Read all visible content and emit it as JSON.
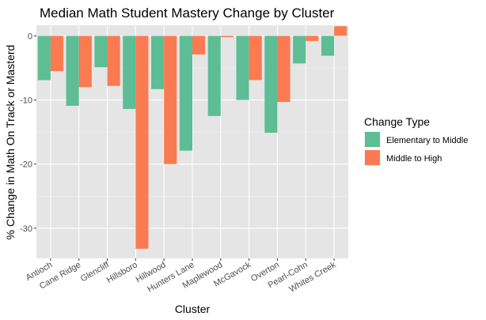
{
  "chart_data": {
    "type": "bar",
    "title": "Median Math Student Mastery Change by Cluster",
    "xlabel": "Cluster",
    "ylabel": "% Change in Math On Track or Masterd",
    "categories": [
      "Antioch",
      "Cane Ridge",
      "Glencliff",
      "Hillsboro",
      "Hillwood",
      "Hunters Lane",
      "Maplewood",
      "McGavock",
      "Overton",
      "Pearl-Cohn",
      "Whites Creek"
    ],
    "series": [
      {
        "name": "Elementary to Middle",
        "color": "#5DBD95",
        "values": [
          -6.9,
          -10.9,
          -4.9,
          -11.4,
          -8.3,
          -17.9,
          -12.5,
          -10.0,
          -15.1,
          -4.3,
          -3.1
        ]
      },
      {
        "name": "Middle to High",
        "color": "#FA7B52",
        "values": [
          -5.5,
          -8.0,
          -7.8,
          -33.2,
          -20.0,
          -2.9,
          -0.2,
          -6.9,
          -10.3,
          -0.8,
          1.5
        ]
      }
    ],
    "ylim": [
      -34.7,
      1.65
    ],
    "yticks": [
      0,
      -10,
      -20,
      -30
    ],
    "ytick_labels": [
      "0",
      "-10",
      "-20",
      "-30"
    ],
    "grid": true,
    "panel_background": "#E5E5E5",
    "legend": {
      "title": "Change Type",
      "placement": "right"
    }
  }
}
